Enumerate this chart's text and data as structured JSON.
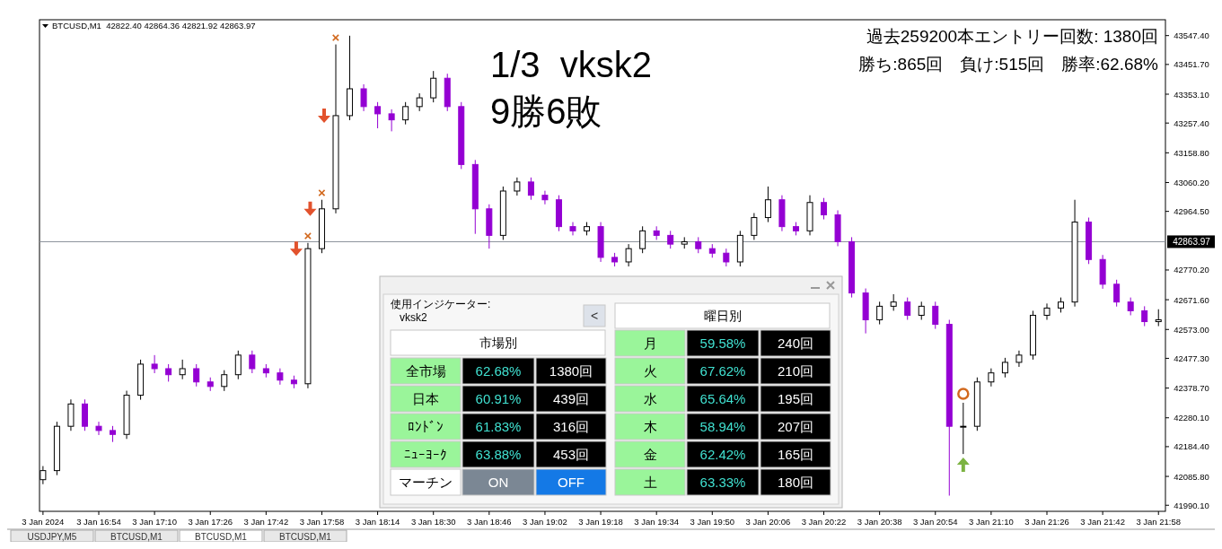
{
  "chart_data": [
    {
      "type": "candlestick",
      "title": "BTCUSD,M1  42822.40 42864.36 42821.92 42863.97",
      "x": [
        "2024-01-03T16:38",
        "2024-01-03T16:42",
        "2024-01-03T16:46",
        "2024-01-03T16:50",
        "2024-01-03T16:54",
        "2024-01-03T16:58",
        "2024-01-03T17:02",
        "2024-01-03T17:06",
        "2024-01-03T17:10",
        "2024-01-03T17:14",
        "2024-01-03T17:18",
        "2024-01-03T17:22",
        "2024-01-03T17:26",
        "2024-01-03T17:30",
        "2024-01-03T17:34",
        "2024-01-03T17:38",
        "2024-01-03T17:42",
        "2024-01-03T17:46",
        "2024-01-03T17:50",
        "2024-01-03T17:54",
        "2024-01-03T17:58",
        "2024-01-03T18:02",
        "2024-01-03T18:06",
        "2024-01-03T18:10",
        "2024-01-03T18:14",
        "2024-01-03T18:18",
        "2024-01-03T18:22",
        "2024-01-03T18:26",
        "2024-01-03T18:30",
        "2024-01-03T18:34",
        "2024-01-03T18:38",
        "2024-01-03T18:42",
        "2024-01-03T18:46",
        "2024-01-03T18:50",
        "2024-01-03T18:54",
        "2024-01-03T18:58",
        "2024-01-03T19:02",
        "2024-01-03T19:06",
        "2024-01-03T19:10",
        "2024-01-03T19:14",
        "2024-01-03T19:18",
        "2024-01-03T19:22",
        "2024-01-03T19:26",
        "2024-01-03T19:30",
        "2024-01-03T19:34",
        "2024-01-03T19:38",
        "2024-01-03T19:42",
        "2024-01-03T19:46",
        "2024-01-03T19:50",
        "2024-01-03T19:54",
        "2024-01-03T19:58",
        "2024-01-03T20:02",
        "2024-01-03T20:06",
        "2024-01-03T20:10",
        "2024-01-03T20:14",
        "2024-01-03T20:18",
        "2024-01-03T20:22",
        "2024-01-03T20:26",
        "2024-01-03T20:30",
        "2024-01-03T20:34",
        "2024-01-03T20:38",
        "2024-01-03T20:42",
        "2024-01-03T20:46",
        "2024-01-03T20:50",
        "2024-01-03T20:54",
        "2024-01-03T20:58",
        "2024-01-03T21:02",
        "2024-01-03T21:06",
        "2024-01-03T21:10",
        "2024-01-03T21:14",
        "2024-01-03T21:18",
        "2024-01-03T21:22",
        "2024-01-03T21:26",
        "2024-01-03T21:30",
        "2024-01-03T21:34",
        "2024-01-03T21:38",
        "2024-01-03T21:42",
        "2024-01-03T21:46",
        "2024-01-03T21:50",
        "2024-01-03T21:54",
        "2024-01-03T21:58"
      ],
      "ohlc": [
        [
          42075,
          42120,
          42060,
          42105
        ],
        [
          42105,
          42267,
          42090,
          42252
        ],
        [
          42252,
          42341,
          42237,
          42326
        ],
        [
          42326,
          42341,
          42237,
          42252
        ],
        [
          42252,
          42267,
          42223,
          42238
        ],
        [
          42238,
          42253,
          42200,
          42225
        ],
        [
          42225,
          42370,
          42210,
          42355
        ],
        [
          42355,
          42473,
          42340,
          42458
        ],
        [
          42458,
          42488,
          42428,
          42443
        ],
        [
          42443,
          42458,
          42400,
          42423
        ],
        [
          42423,
          42473,
          42408,
          42443
        ],
        [
          42443,
          42458,
          42384,
          42399
        ],
        [
          42399,
          42414,
          42369,
          42384
        ],
        [
          42384,
          42438,
          42369,
          42423
        ],
        [
          42423,
          42503,
          42408,
          42488
        ],
        [
          42488,
          42503,
          42428,
          42443
        ],
        [
          42443,
          42458,
          42414,
          42429
        ],
        [
          42429,
          42444,
          42390,
          42405
        ],
        [
          42405,
          42420,
          42378,
          42393
        ],
        [
          42393,
          42860,
          42378,
          42841
        ],
        [
          42841,
          43003,
          42826,
          42973
        ],
        [
          42973,
          43518,
          42958,
          43282
        ],
        [
          43282,
          43547,
          43267,
          43371
        ],
        [
          43371,
          43386,
          43297,
          43312
        ],
        [
          43312,
          43327,
          43240,
          43288
        ],
        [
          43288,
          43303,
          43230,
          43268
        ],
        [
          43268,
          43327,
          43253,
          43312
        ],
        [
          43312,
          43356,
          43297,
          43341
        ],
        [
          43341,
          43430,
          43326,
          43406
        ],
        [
          43406,
          43421,
          43297,
          43312
        ],
        [
          43312,
          43327,
          43105,
          43120
        ],
        [
          43120,
          43135,
          42890,
          42973
        ],
        [
          42973,
          42988,
          42841,
          42885
        ],
        [
          42885,
          43047,
          42870,
          43032
        ],
        [
          43032,
          43077,
          43017,
          43062
        ],
        [
          43062,
          43077,
          43003,
          43018
        ],
        [
          43018,
          43033,
          42988,
          43003
        ],
        [
          43003,
          43018,
          42899,
          42914
        ],
        [
          42914,
          42929,
          42885,
          42900
        ],
        [
          42900,
          42929,
          42885,
          42914
        ],
        [
          42914,
          42929,
          42797,
          42812
        ],
        [
          42812,
          42827,
          42782,
          42797
        ],
        [
          42797,
          42856,
          42782,
          42841
        ],
        [
          42841,
          42915,
          42826,
          42900
        ],
        [
          42900,
          42915,
          42870,
          42885
        ],
        [
          42885,
          42900,
          42841,
          42856
        ],
        [
          42856,
          42879,
          42841,
          42864
        ],
        [
          42864,
          42879,
          42826,
          42841
        ],
        [
          42841,
          42856,
          42811,
          42826
        ],
        [
          42826,
          42841,
          42782,
          42797
        ],
        [
          42797,
          42900,
          42782,
          42885
        ],
        [
          42885,
          42959,
          42870,
          42944
        ],
        [
          42944,
          43047,
          42929,
          43003
        ],
        [
          43003,
          43018,
          42899,
          42914
        ],
        [
          42914,
          42929,
          42885,
          42900
        ],
        [
          42900,
          43018,
          42885,
          42994
        ],
        [
          42994,
          43009,
          42938,
          42953
        ],
        [
          42953,
          42968,
          42849,
          42864
        ],
        [
          42864,
          42879,
          42679,
          42694
        ],
        [
          42694,
          42709,
          42560,
          42605
        ],
        [
          42605,
          42665,
          42590,
          42650
        ],
        [
          42650,
          42690,
          42635,
          42664
        ],
        [
          42664,
          42679,
          42605,
          42620
        ],
        [
          42620,
          42665,
          42605,
          42650
        ],
        [
          42650,
          42665,
          42575,
          42590
        ],
        [
          42590,
          42605,
          42022,
          42252
        ],
        [
          42252,
          42330,
          42160,
          42252
        ],
        [
          42252,
          42414,
          42237,
          42399
        ],
        [
          42399,
          42444,
          42384,
          42429
        ],
        [
          42429,
          42479,
          42414,
          42464
        ],
        [
          42464,
          42503,
          42449,
          42488
        ],
        [
          42488,
          42635,
          42473,
          42620
        ],
        [
          42620,
          42659,
          42605,
          42644
        ],
        [
          42644,
          42679,
          42629,
          42664
        ],
        [
          42664,
          43003,
          42649,
          42929
        ],
        [
          42929,
          42944,
          42790,
          42805
        ],
        [
          42805,
          42820,
          42708,
          42723
        ],
        [
          42723,
          42738,
          42649,
          42664
        ],
        [
          42664,
          42679,
          42620,
          42635
        ],
        [
          42635,
          42650,
          42584,
          42599
        ],
        [
          42599,
          42640,
          42584,
          42605
        ]
      ],
      "xlim": [
        "2024-01-03T16:37",
        "2024-01-03T22:00"
      ],
      "xticks": [
        {
          "value": "2024-01-03T16:38",
          "label": "3 Jan 2024"
        },
        {
          "value": "2024-01-03T16:54",
          "label": "3 Jan 16:54"
        },
        {
          "value": "2024-01-03T17:10",
          "label": "3 Jan 17:10"
        },
        {
          "value": "2024-01-03T17:26",
          "label": "3 Jan 17:26"
        },
        {
          "value": "2024-01-03T17:42",
          "label": "3 Jan 17:42"
        },
        {
          "value": "2024-01-03T17:58",
          "label": "3 Jan 17:58"
        },
        {
          "value": "2024-01-03T18:14",
          "label": "3 Jan 18:14"
        },
        {
          "value": "2024-01-03T18:30",
          "label": "3 Jan 18:30"
        },
        {
          "value": "2024-01-03T18:46",
          "label": "3 Jan 18:46"
        },
        {
          "value": "2024-01-03T19:02",
          "label": "3 Jan 19:02"
        },
        {
          "value": "2024-01-03T19:18",
          "label": "3 Jan 19:18"
        },
        {
          "value": "2024-01-03T19:34",
          "label": "3 Jan 19:34"
        },
        {
          "value": "2024-01-03T19:50",
          "label": "3 Jan 19:50"
        },
        {
          "value": "2024-01-03T20:06",
          "label": "3 Jan 20:06"
        },
        {
          "value": "2024-01-03T20:22",
          "label": "3 Jan 20:22"
        },
        {
          "value": "2024-01-03T20:38",
          "label": "3 Jan 20:38"
        },
        {
          "value": "2024-01-03T20:54",
          "label": "3 Jan 20:54"
        },
        {
          "value": "2024-01-03T21:10",
          "label": "3 Jan 21:10"
        },
        {
          "value": "2024-01-03T21:26",
          "label": "3 Jan 21:26"
        },
        {
          "value": "2024-01-03T21:42",
          "label": "3 Jan 21:42"
        },
        {
          "value": "2024-01-03T21:58",
          "label": "3 Jan 21:58"
        }
      ],
      "ylim": [
        41970,
        43600
      ],
      "yticks": [
        {
          "value": 41990.1,
          "label": "41990.10"
        },
        {
          "value": 42085.8,
          "label": "42085.80"
        },
        {
          "value": 42184.4,
          "label": "42184.40"
        },
        {
          "value": 42280.1,
          "label": "42280.10"
        },
        {
          "value": 42378.7,
          "label": "42378.70"
        },
        {
          "value": 42477.3,
          "label": "42477.30"
        },
        {
          "value": 42573,
          "label": "42573.00"
        },
        {
          "value": 42671.6,
          "label": "42671.60"
        },
        {
          "value": 42770.2,
          "label": "42770.20"
        },
        {
          "value": 42964.5,
          "label": "42964.50"
        },
        {
          "value": 43060.2,
          "label": "43060.20"
        },
        {
          "value": 43158.8,
          "label": "43158.80"
        },
        {
          "value": 43257.4,
          "label": "43257.40"
        },
        {
          "value": 43353.1,
          "label": "43353.10"
        },
        {
          "value": 43451.7,
          "label": "43451.70"
        },
        {
          "value": 43547.4,
          "label": "43547.40"
        }
      ],
      "ref_lines": [
        {
          "axis": "y",
          "value": 42863.97,
          "label": "42863.97",
          "color": "#8a9099"
        }
      ],
      "grid": false,
      "annotations": [
        "1/3  vksk2",
        "9勝6敗",
        "過去259200本エントリー回数: 1380回",
        "勝ち:865回　負け:515回　勝率:62.68%",
        "USDJPY,M5",
        "BTCUSD,M1",
        "BTCUSD,M1",
        "BTCUSD,M1",
        {
          "text": "×",
          "x": "2024-01-03T17:54",
          "y": 42860
        },
        {
          "text": "×",
          "x": "2024-01-03T17:58",
          "y": 43003
        },
        {
          "text": "×",
          "x": "2024-01-03T18:02",
          "y": 43518
        }
      ]
    },
    {
      "type": "other",
      "annotations": [
        "使用インジケーター:",
        "vksk2",
        "<",
        "曜日別",
        "市場別",
        "全市場",
        "62.68%",
        "1380回",
        "日本",
        "60.91%",
        "439回",
        "ﾛﾝﾄﾞﾝ",
        "61.83%",
        "316回",
        "ﾆｭｰﾖｰｸ",
        "63.88%",
        "453回",
        "マーチン",
        "ON",
        "OFF",
        "月",
        "59.58%",
        "240回",
        "火",
        "67.62%",
        "210回",
        "水",
        "65.64%",
        "195回",
        "木",
        "58.94%",
        "207回",
        "金",
        "62.42%",
        "165回",
        "土",
        "63.33%",
        "180回"
      ]
    }
  ]
}
